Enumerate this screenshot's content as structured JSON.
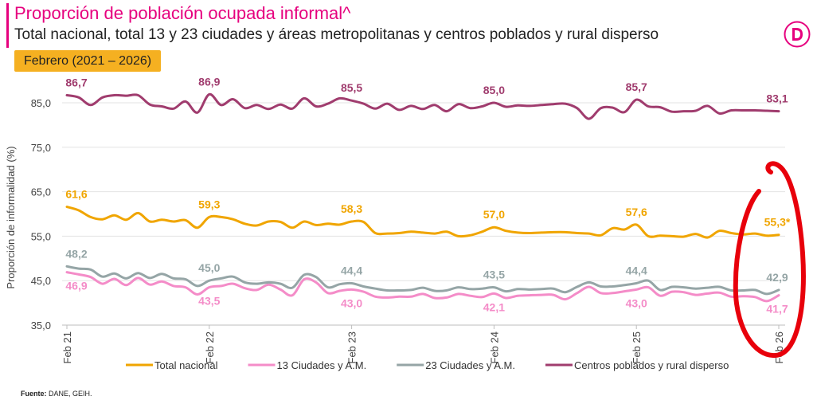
{
  "header": {
    "title": "Proporción de población ocupada informal^",
    "subtitle": "Total nacional, total 13 y 23 ciudades y áreas metropolitanas y centros poblados y rural disperso",
    "period": "Febrero (2021 – 2026)"
  },
  "source": {
    "label": "Fuente:",
    "text": "DANE, GEIH."
  },
  "colors": {
    "brand": "#e6007e",
    "total": "#f0a500",
    "c13": "#f48cc8",
    "c23": "#95a5a6",
    "rural": "#a03c6e",
    "period_bg": "#f5b021",
    "annotation": "#e8000b"
  },
  "chart_data": {
    "type": "line",
    "ylabel": "Proporción de informalidad (%)",
    "xlabel": "",
    "ylim": [
      35,
      88
    ],
    "yticks": [
      "85,0",
      "75,0",
      "65,0",
      "55,0",
      "45,0",
      "35,0"
    ],
    "ytick_values": [
      85,
      75,
      65,
      55,
      45,
      35
    ],
    "grid": "horizontal",
    "legend_position": "bottom",
    "x_tick_labels": [
      "Feb 21",
      "Feb 22",
      "Feb 23",
      "Feb 24",
      "Feb 25",
      "Feb 26"
    ],
    "x_tick_index": [
      0,
      12,
      24,
      36,
      48,
      60
    ],
    "series": [
      {
        "key": "rural",
        "name": "Centros poblados y rural disperso",
        "color": "#a03c6e",
        "values": [
          86.7,
          86.2,
          84.5,
          86.2,
          86.7,
          86.6,
          86.7,
          84.6,
          84.2,
          83.7,
          85.3,
          82.8,
          86.9,
          84.5,
          85.8,
          83.8,
          84.5,
          83.6,
          84.6,
          83.7,
          86.0,
          84.2,
          84.8,
          86.0,
          85.5,
          84.8,
          83.7,
          84.8,
          83.4,
          84.3,
          83.6,
          84.5,
          83.1,
          84.7,
          83.8,
          84.2,
          85.0,
          84.1,
          84.4,
          84.3,
          84.5,
          84.7,
          84.8,
          83.8,
          81.4,
          83.8,
          83.9,
          82.9,
          85.7,
          84.2,
          84.0,
          83.0,
          83.1,
          83.2,
          84.3,
          82.6,
          83.3,
          83.3,
          83.3,
          83.2,
          83.1
        ],
        "labels": [
          {
            "i": 0,
            "text": "86,7",
            "pos": "above"
          },
          {
            "i": 12,
            "text": "86,9",
            "pos": "above"
          },
          {
            "i": 24,
            "text": "85,5",
            "pos": "above"
          },
          {
            "i": 36,
            "text": "85,0",
            "pos": "above"
          },
          {
            "i": 48,
            "text": "85,7",
            "pos": "above"
          },
          {
            "i": 60,
            "text": "83,1",
            "pos": "above"
          }
        ]
      },
      {
        "key": "total",
        "name": "Total nacional",
        "color": "#f0a500",
        "values": [
          61.6,
          60.8,
          59.3,
          58.8,
          59.7,
          58.7,
          60.2,
          58.3,
          58.7,
          58.3,
          58.6,
          56.9,
          59.3,
          59.3,
          58.8,
          57.8,
          57.4,
          58.3,
          58.2,
          56.9,
          58.3,
          57.5,
          57.8,
          57.6,
          58.3,
          58.2,
          55.7,
          55.6,
          55.7,
          56.0,
          55.8,
          55.6,
          56.0,
          55.0,
          55.2,
          56.0,
          57.0,
          56.2,
          55.8,
          55.7,
          55.8,
          55.9,
          55.9,
          55.7,
          55.6,
          55.2,
          56.8,
          56.5,
          57.6,
          55.0,
          55.1,
          55.0,
          54.9,
          55.5,
          54.7,
          56.2,
          55.7,
          55.4,
          55.6,
          55.1,
          55.3
        ],
        "labels": [
          {
            "i": 0,
            "text": "61,6",
            "pos": "above"
          },
          {
            "i": 12,
            "text": "59,3",
            "pos": "above"
          },
          {
            "i": 24,
            "text": "58,3",
            "pos": "above"
          },
          {
            "i": 36,
            "text": "57,0",
            "pos": "above"
          },
          {
            "i": 48,
            "text": "57,6",
            "pos": "above"
          },
          {
            "i": 60,
            "text": "55,3*",
            "pos": "above"
          }
        ]
      },
      {
        "key": "c23",
        "name": "23 Ciudades y A.M.",
        "color": "#95a5a6",
        "values": [
          48.2,
          47.7,
          47.5,
          45.9,
          46.6,
          45.5,
          46.7,
          45.6,
          46.5,
          45.5,
          45.3,
          43.8,
          45.0,
          45.5,
          45.9,
          44.6,
          44.3,
          44.6,
          44.3,
          43.4,
          46.3,
          45.8,
          43.5,
          44.2,
          44.4,
          43.7,
          43.2,
          42.8,
          42.8,
          42.9,
          43.4,
          42.7,
          42.8,
          43.5,
          43.1,
          43.2,
          43.5,
          42.6,
          43.1,
          43.0,
          43.1,
          43.2,
          42.4,
          43.6,
          44.6,
          43.7,
          43.7,
          44.0,
          44.4,
          45.0,
          42.9,
          43.6,
          43.5,
          43.2,
          43.4,
          43.6,
          42.8,
          42.8,
          42.9,
          42.0,
          42.9
        ],
        "labels": [
          {
            "i": 0,
            "text": "48,2",
            "pos": "above"
          },
          {
            "i": 12,
            "text": "45,0",
            "pos": "above"
          },
          {
            "i": 24,
            "text": "44,4",
            "pos": "above"
          },
          {
            "i": 36,
            "text": "43,5",
            "pos": "above"
          },
          {
            "i": 48,
            "text": "44,4",
            "pos": "above"
          },
          {
            "i": 60,
            "text": "42,9",
            "pos": "above"
          }
        ]
      },
      {
        "key": "c13",
        "name": "13 Ciudades y A.M.",
        "color": "#f48cc8",
        "values": [
          46.9,
          46.4,
          45.8,
          44.3,
          45.4,
          44.0,
          45.6,
          44.1,
          44.8,
          43.8,
          43.5,
          41.9,
          43.5,
          43.8,
          44.3,
          43.3,
          42.9,
          44.1,
          43.0,
          41.7,
          45.3,
          44.6,
          42.2,
          42.7,
          43.0,
          42.5,
          41.4,
          41.2,
          41.4,
          41.4,
          42.0,
          41.1,
          41.2,
          42.0,
          41.6,
          41.3,
          42.1,
          41.1,
          41.6,
          41.7,
          41.8,
          41.8,
          40.8,
          42.2,
          43.6,
          42.2,
          42.2,
          42.6,
          43.0,
          43.5,
          41.6,
          42.5,
          42.4,
          41.8,
          42.1,
          42.3,
          41.4,
          41.5,
          41.3,
          40.4,
          41.7
        ],
        "labels": [
          {
            "i": 0,
            "text": "46,9",
            "pos": "below"
          },
          {
            "i": 12,
            "text": "43,5",
            "pos": "below"
          },
          {
            "i": 24,
            "text": "43,0",
            "pos": "below"
          },
          {
            "i": 36,
            "text": "42,1",
            "pos": "below"
          },
          {
            "i": 48,
            "text": "43,0",
            "pos": "below"
          },
          {
            "i": 60,
            "text": "41,7",
            "pos": "below"
          }
        ]
      }
    ],
    "legend_order": [
      "total",
      "c13",
      "c23",
      "rural"
    ]
  }
}
